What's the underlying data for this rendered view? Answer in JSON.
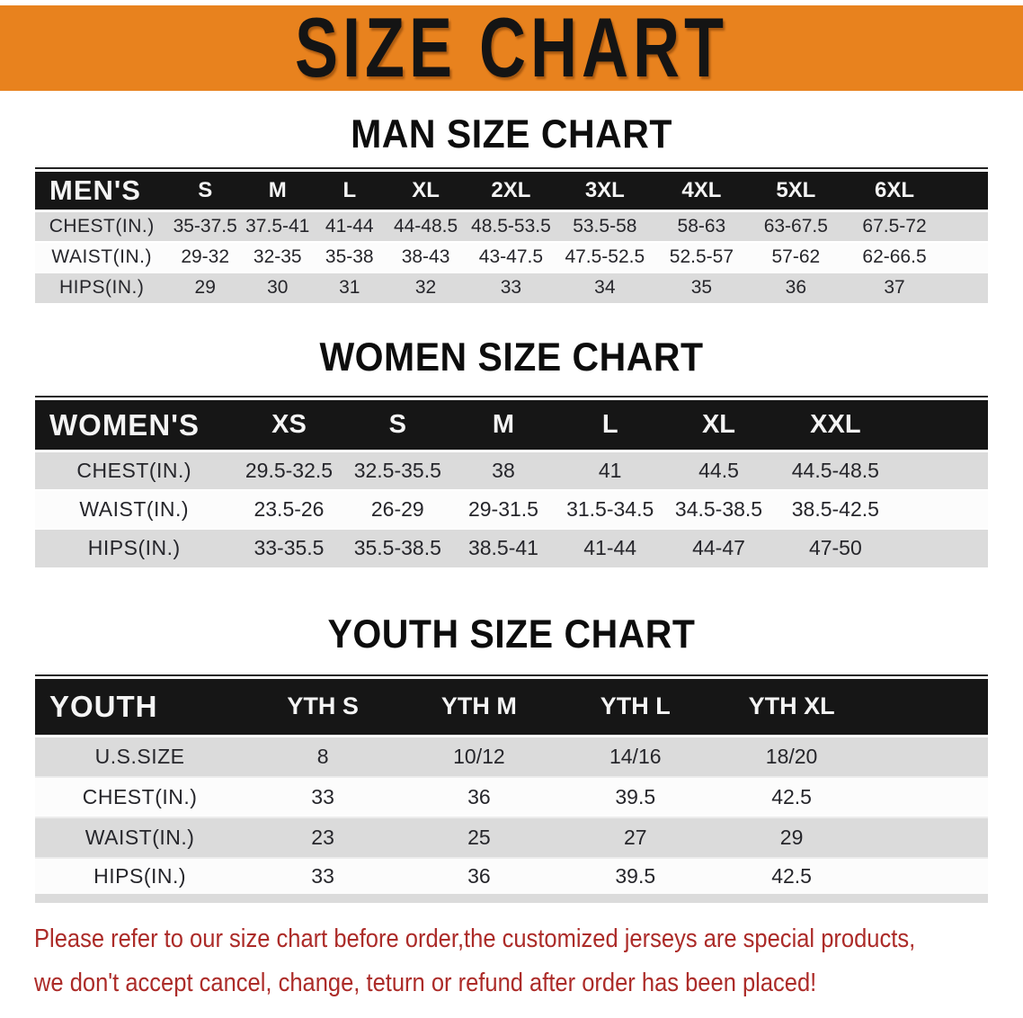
{
  "banner": {
    "title": "SIZE CHART"
  },
  "colors": {
    "banner_bg": "#E8821E",
    "table_header_bg": "#161616",
    "row_stripe": "#DBDBDB",
    "disclaimer_text": "#AC2B28"
  },
  "sections": [
    {
      "id": "men",
      "heading": "MAN SIZE CHART",
      "table": {
        "header_label": "MEN'S",
        "columns": [
          "S",
          "M",
          "L",
          "XL",
          "2XL",
          "3XL",
          "4XL",
          "5XL",
          "6XL"
        ],
        "rows": [
          {
            "label": "CHEST(IN.)",
            "values": [
              "35-37.5",
              "37.5-41",
              "41-44",
              "44-48.5",
              "48.5-53.5",
              "53.5-58",
              "58-63",
              "63-67.5",
              "67.5-72"
            ]
          },
          {
            "label": "WAIST(IN.)",
            "values": [
              "29-32",
              "32-35",
              "35-38",
              "38-43",
              "43-47.5",
              "47.5-52.5",
              "52.5-57",
              "57-62",
              "62-66.5"
            ]
          },
          {
            "label": "HIPS(IN.)",
            "values": [
              "29",
              "30",
              "31",
              "32",
              "33",
              "34",
              "35",
              "36",
              "37"
            ]
          }
        ]
      }
    },
    {
      "id": "women",
      "heading": "WOMEN SIZE CHART",
      "table": {
        "header_label": "WOMEN'S",
        "columns": [
          "XS",
          "S",
          "M",
          "L",
          "XL",
          "XXL"
        ],
        "rows": [
          {
            "label": "CHEST(IN.)",
            "values": [
              "29.5-32.5",
              "32.5-35.5",
              "38",
              "41",
              "44.5",
              "44.5-48.5"
            ]
          },
          {
            "label": "WAIST(IN.)",
            "values": [
              "23.5-26",
              "26-29",
              "29-31.5",
              "31.5-34.5",
              "34.5-38.5",
              "38.5-42.5"
            ]
          },
          {
            "label": "HIPS(IN.)",
            "values": [
              "33-35.5",
              "35.5-38.5",
              "38.5-41",
              "41-44",
              "44-47",
              "47-50"
            ]
          }
        ]
      }
    },
    {
      "id": "youth",
      "heading": "YOUTH SIZE CHART",
      "table": {
        "header_label": "YOUTH",
        "columns": [
          "YTH S",
          "YTH M",
          "YTH L",
          "YTH XL"
        ],
        "rows": [
          {
            "label": "U.S.SIZE",
            "values": [
              "8",
              "10/12",
              "14/16",
              "18/20"
            ]
          },
          {
            "label": "CHEST(IN.)",
            "values": [
              "33",
              "36",
              "39.5",
              "42.5"
            ]
          },
          {
            "label": "WAIST(IN.)",
            "values": [
              "23",
              "25",
              "27",
              "29"
            ]
          },
          {
            "label": "HIPS(IN.)",
            "values": [
              "33",
              "36",
              "39.5",
              "42.5"
            ]
          }
        ]
      }
    }
  ],
  "disclaimer": {
    "lines": [
      "Please refer to our size chart before order,the customized jerseys are special products,",
      "we don't accept cancel, change, teturn or refund after order has been placed!"
    ]
  }
}
